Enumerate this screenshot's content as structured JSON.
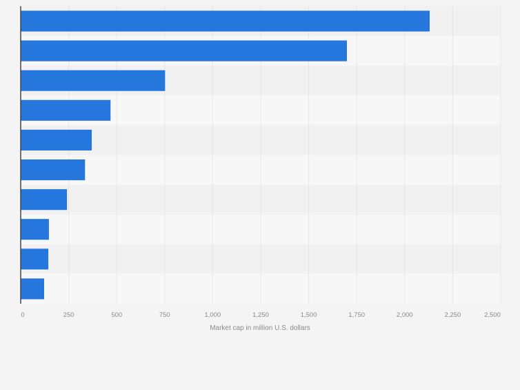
{
  "chart_data": {
    "type": "bar",
    "orientation": "horizontal",
    "categories": [
      "",
      "",
      "",
      "",
      "",
      "",
      "",
      "",
      "",
      ""
    ],
    "values": [
      2130,
      1699,
      752,
      468,
      370,
      335,
      241,
      147,
      144,
      122
    ],
    "xlabel": "Market cap in million U.S. dollars",
    "ylabel": "",
    "xlim": [
      0,
      2500
    ],
    "xticks": [
      0,
      250,
      500,
      750,
      1000,
      1250,
      1500,
      1750,
      2000,
      2250,
      2500
    ],
    "xtick_labels": [
      "0",
      "250",
      "500",
      "750",
      "1,000",
      "1,250",
      "1,500",
      "1,750",
      "2,000",
      "2,250",
      "2,500"
    ],
    "grid": true,
    "colors": {
      "bar": "#2576dd",
      "band_a": "#f1f1f1",
      "band_b": "#f7f7f7",
      "grid": "#d8d8d8",
      "axis": "#444444",
      "text": "#8a8a8a"
    }
  }
}
